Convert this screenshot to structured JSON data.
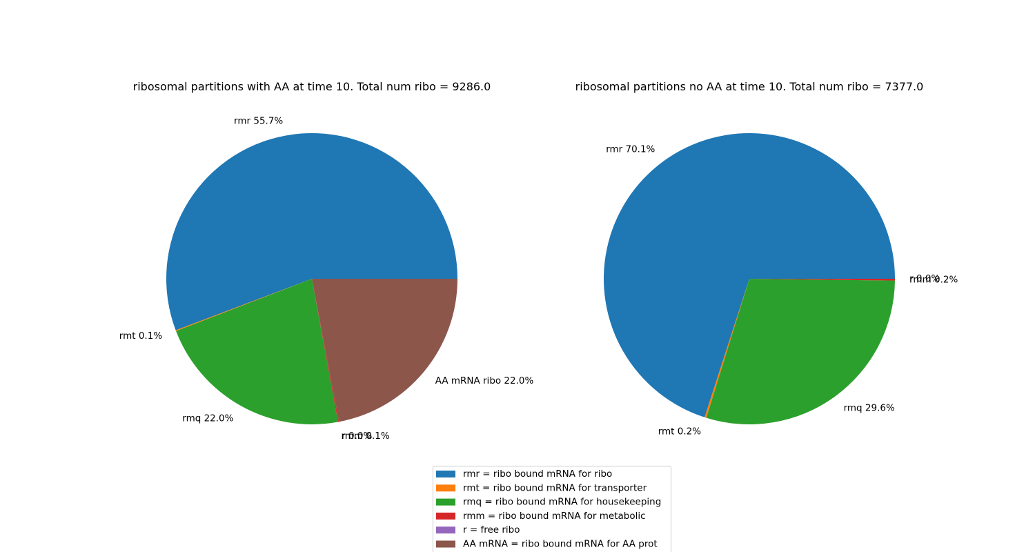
{
  "chart_data": [
    {
      "type": "pie",
      "title": "ribosomal partitions with AA at time 10. Total num ribo = 9286.0",
      "slices": [
        {
          "label": "rmr",
          "percent": 55.7,
          "display": "rmr 55.7%",
          "color": "#1f77b4"
        },
        {
          "label": "rmt",
          "percent": 0.1,
          "display": "rmt 0.1%",
          "color": "#ff7f0e"
        },
        {
          "label": "rmq",
          "percent": 22.0,
          "display": "rmq 22.0%",
          "color": "#2ca02c"
        },
        {
          "label": "rmm",
          "percent": 0.1,
          "display": "rmm 0.1%",
          "color": "#d62728"
        },
        {
          "label": "r",
          "percent": 0.0,
          "display": "r 0.0%",
          "color": "#9467bd"
        },
        {
          "label": "AA mRNA ribo",
          "percent": 22.0,
          "display": "AA mRNA ribo 22.0%",
          "color": "#8c564b"
        }
      ]
    },
    {
      "type": "pie",
      "title": "ribosomal partitions no AA at time 10. Total num ribo = 7377.0",
      "slices": [
        {
          "label": "rmr",
          "percent": 70.1,
          "display": "rmr 70.1%",
          "color": "#1f77b4"
        },
        {
          "label": "rmt",
          "percent": 0.2,
          "display": "rmt 0.2%",
          "color": "#ff7f0e"
        },
        {
          "label": "rmq",
          "percent": 29.6,
          "display": "rmq 29.6%",
          "color": "#2ca02c"
        },
        {
          "label": "rmm",
          "percent": 0.2,
          "display": "rmm 0.2%",
          "color": "#d62728"
        },
        {
          "label": "r",
          "percent": 0.0,
          "display": "r 0.0%",
          "color": "#9467bd"
        }
      ]
    }
  ],
  "legend": {
    "placement": "bottom-center",
    "entries": [
      {
        "label": "rmr = ribo bound mRNA for ribo",
        "color": "#1f77b4"
      },
      {
        "label": "rmt = ribo bound mRNA for transporter",
        "color": "#ff7f0e"
      },
      {
        "label": "rmq = ribo bound mRNA for housekeeping",
        "color": "#2ca02c"
      },
      {
        "label": "rmm = ribo bound mRNA for metabolic",
        "color": "#d62728"
      },
      {
        "label": "r = free ribo",
        "color": "#9467bd"
      },
      {
        "label": "AA mRNA = ribo bound mRNA for AA prot",
        "color": "#8c564b"
      }
    ]
  }
}
